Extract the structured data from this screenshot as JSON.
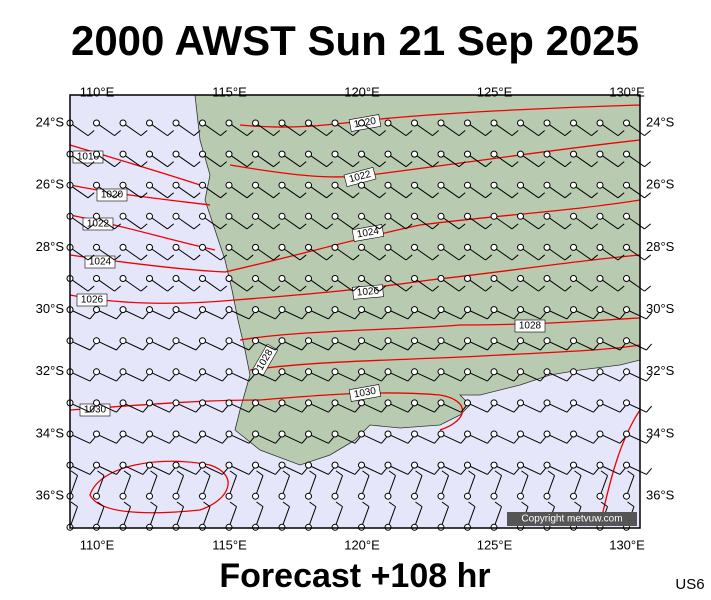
{
  "header": {
    "title": "2000 AWST Sun 21 Sep 2025"
  },
  "map": {
    "lon_labels": [
      "110°E",
      "115°E",
      "120°E",
      "125°E",
      "130°E"
    ],
    "lat_labels": [
      "24°S",
      "26°S",
      "28°S",
      "30°S",
      "32°S",
      "34°S",
      "36°S"
    ],
    "isobar_labels": [
      1018,
      1020,
      1022,
      1024,
      1026,
      1030,
      1020,
      1022,
      1024,
      1026,
      1028,
      1028,
      1030
    ],
    "copyright": "Copyright metvuw.com"
  },
  "footer": {
    "forecast": "Forecast +108 hr",
    "code": "US6"
  }
}
